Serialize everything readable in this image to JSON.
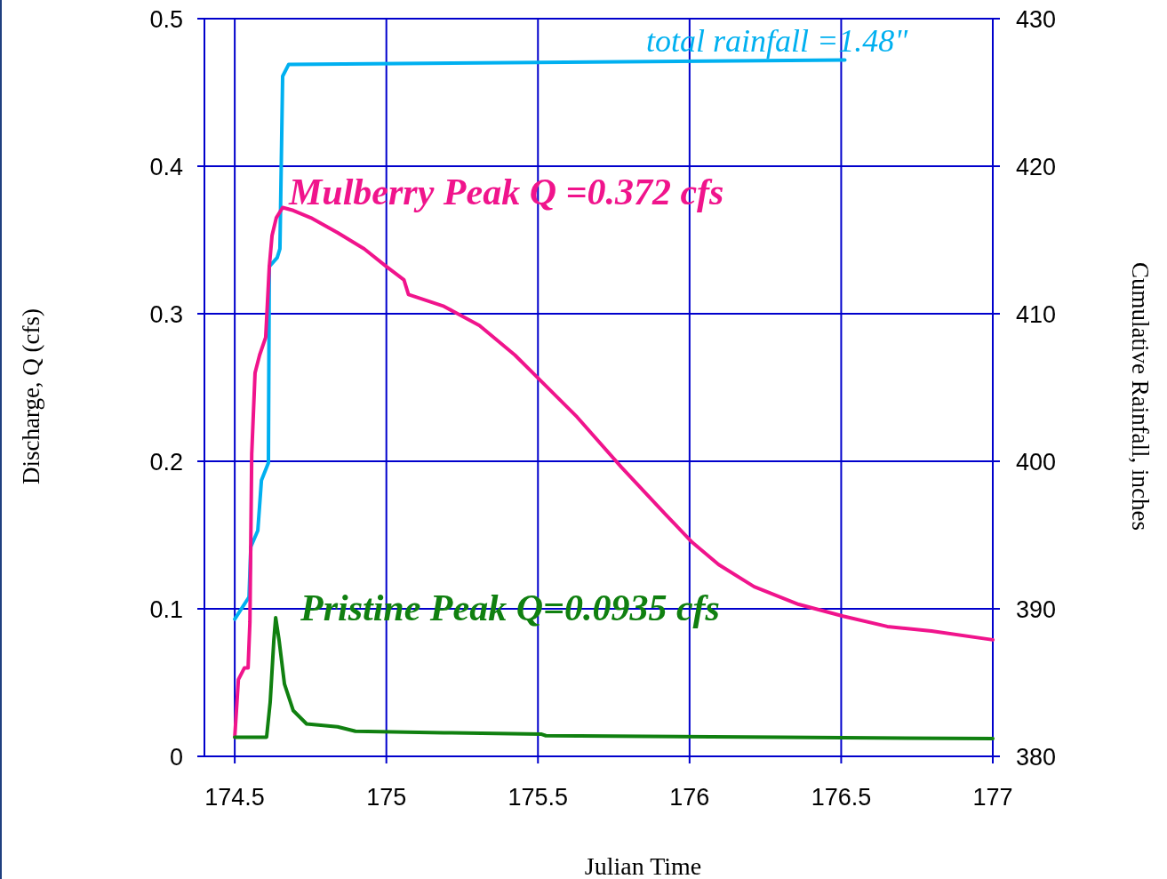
{
  "chart_data": {
    "type": "line",
    "xlabel": "Julian Time",
    "ylabel": "Discharge, Q (cfs)",
    "y2label": "Cumulative Rainfall, inches",
    "xlim": [
      174.4,
      177
    ],
    "xticks": [
      174.5,
      175,
      175.5,
      176,
      176.5,
      177
    ],
    "ylim": [
      0,
      0.5
    ],
    "yticks": [
      0,
      0.1,
      0.2,
      0.3,
      0.4,
      0.5
    ],
    "y2lim": [
      380,
      430
    ],
    "y2ticks": [
      380,
      390,
      400,
      410,
      420,
      430
    ],
    "grid": true,
    "series": [
      {
        "color": "#00b0f0",
        "axis": "y2",
        "x": [
          174.5,
          174.547,
          174.553,
          174.576,
          174.588,
          174.611,
          174.614,
          174.64,
          174.649,
          174.658,
          174.678,
          176.512
        ],
        "values": [
          389.3,
          390.8,
          394.2,
          395.3,
          398.7,
          399.9,
          413.2,
          413.8,
          414.4,
          426.1,
          426.9,
          427.2
        ]
      },
      {
        "color": "#f0148c",
        "x": [
          174.5,
          174.512,
          174.532,
          174.544,
          174.55,
          174.556,
          174.567,
          174.582,
          174.602,
          174.614,
          174.623,
          174.637,
          174.658,
          174.693,
          174.751,
          174.839,
          174.927,
          175.0,
          175.058,
          175.073,
          175.19,
          175.307,
          175.424,
          175.512,
          175.629,
          175.775,
          175.921,
          176.009,
          176.096,
          176.213,
          176.36,
          176.506,
          176.652,
          176.798,
          177.0
        ],
        "values": [
          0.013,
          0.052,
          0.06,
          0.06,
          0.091,
          0.205,
          0.26,
          0.272,
          0.284,
          0.332,
          0.353,
          0.365,
          0.372,
          0.37,
          0.365,
          0.355,
          0.344,
          0.332,
          0.323,
          0.313,
          0.305,
          0.292,
          0.272,
          0.254,
          0.23,
          0.196,
          0.164,
          0.145,
          0.13,
          0.115,
          0.103,
          0.095,
          0.088,
          0.085,
          0.079
        ]
      },
      {
        "color": "#108010",
        "x": [
          174.5,
          174.605,
          174.617,
          174.629,
          174.635,
          174.646,
          174.664,
          174.693,
          174.737,
          174.839,
          174.898,
          175.19,
          175.512,
          175.526,
          176.301,
          177.0
        ],
        "values": [
          0.013,
          0.013,
          0.037,
          0.079,
          0.094,
          0.079,
          0.049,
          0.031,
          0.022,
          0.02,
          0.017,
          0.016,
          0.015,
          0.014,
          0.013,
          0.012
        ]
      }
    ],
    "annotations": [
      "total rainfall =1.48\"",
      "Mulberry Peak Q =0.372 cfs",
      "Pristine Peak Q=0.0935 cfs"
    ]
  }
}
